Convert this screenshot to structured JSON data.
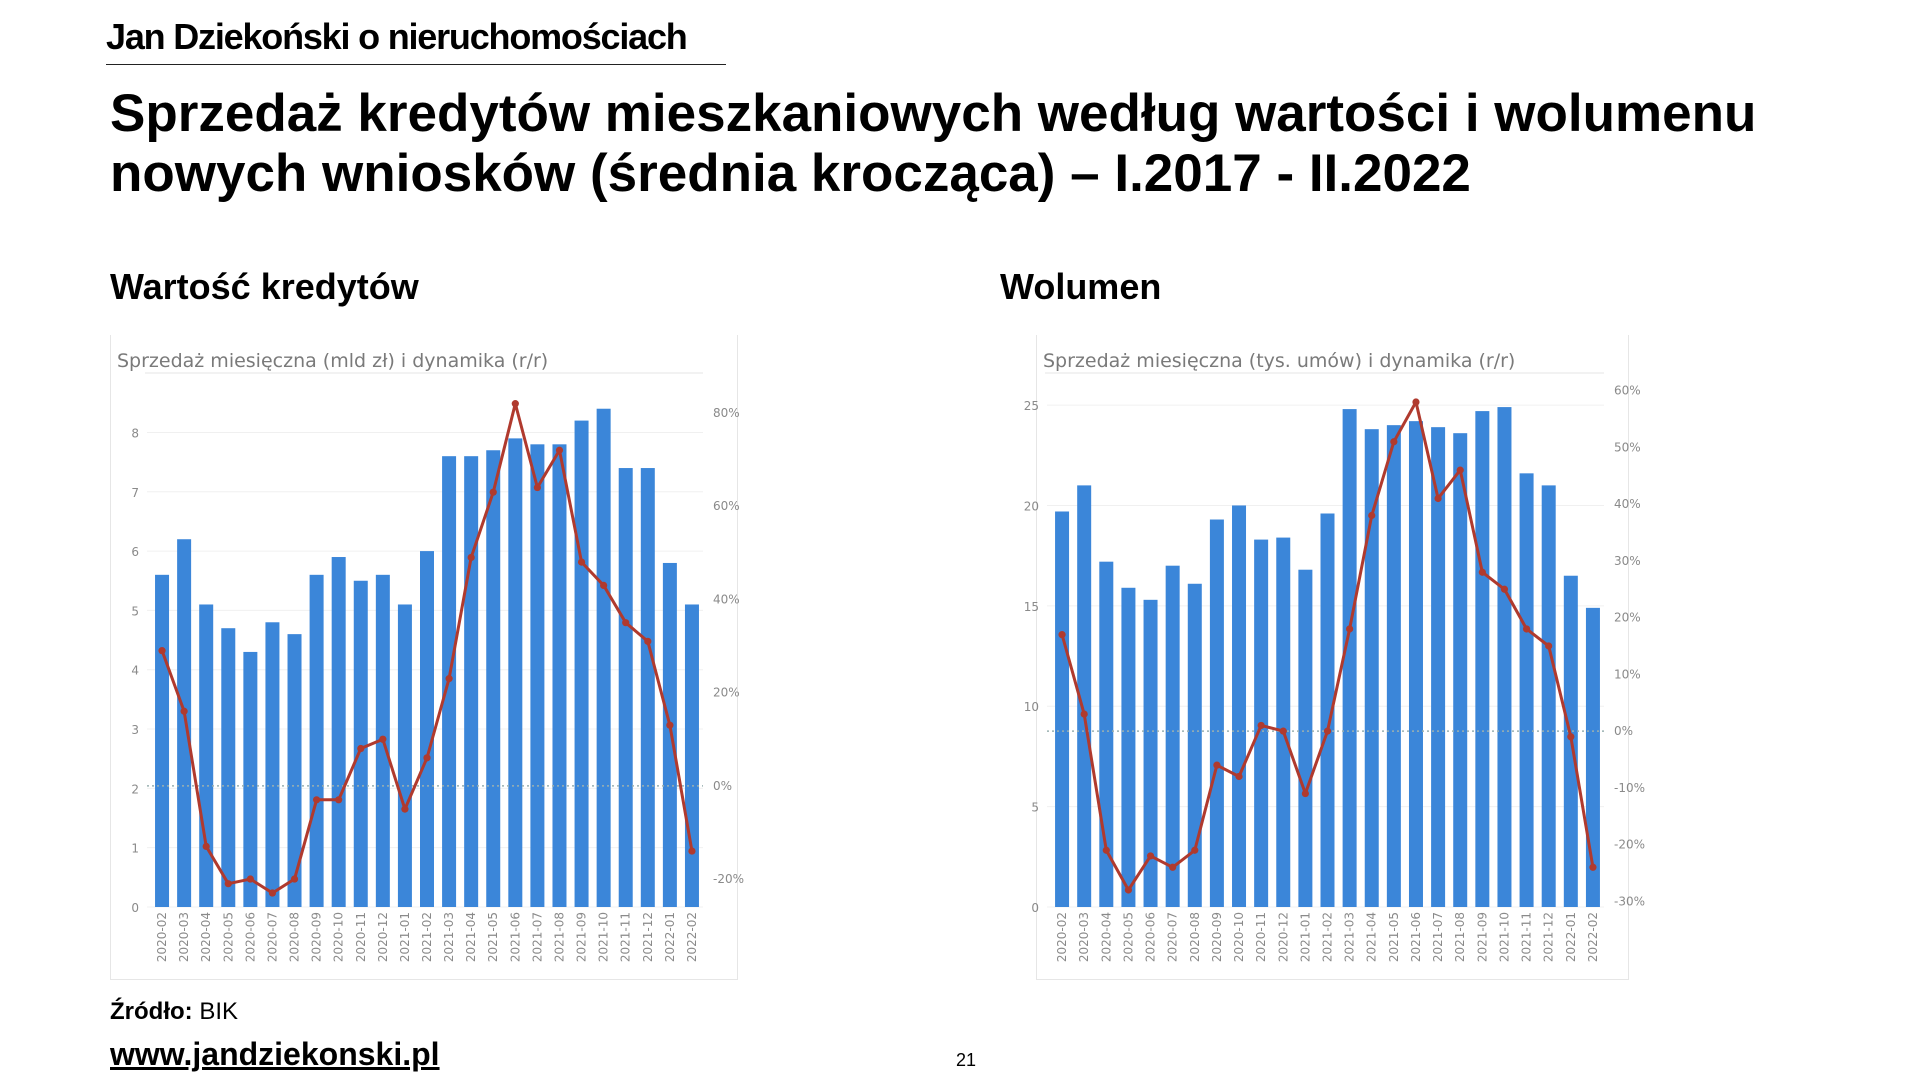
{
  "header": {
    "brand": "Jan Dziekoński o nieruchomościach",
    "title": "Sprzedaż kredytów mieszkaniowych według wartości i wolumenu nowych wniosków (średnia krocząca) – I.2017 - II.2022"
  },
  "sections": {
    "left_title": "Wartość kredytów",
    "right_title": "Wolumen"
  },
  "footer": {
    "source_label": "Źródło:",
    "source_value": "BIK",
    "website": "www.jandziekonski.pl",
    "page_number": "21"
  },
  "colors": {
    "bar": "#3b86d9",
    "line": "#b03a2e",
    "axis_text": "#8a8a8a",
    "grid": "#f0f0f0",
    "zero_line": "#9ab0b0"
  },
  "chart_data": [
    {
      "type": "bar",
      "title": "Sprzedaż miesięczna (mld zł) i dynamika (r/r)",
      "categories": [
        "2020-02",
        "2020-03",
        "2020-04",
        "2020-05",
        "2020-06",
        "2020-07",
        "2020-08",
        "2020-09",
        "2020-10",
        "2020-11",
        "2020-12",
        "2021-01",
        "2021-02",
        "2021-03",
        "2021-04",
        "2021-05",
        "2021-06",
        "2021-07",
        "2021-08",
        "2021-09",
        "2021-10",
        "2021-11",
        "2021-12",
        "2022-01",
        "2022-02"
      ],
      "series": [
        {
          "kind": "bar",
          "axis": "left",
          "values": [
            5.6,
            6.2,
            5.1,
            4.7,
            4.3,
            4.8,
            4.6,
            5.6,
            5.9,
            5.5,
            5.6,
            5.1,
            6.0,
            7.6,
            7.6,
            7.7,
            7.9,
            7.8,
            7.8,
            8.2,
            8.4,
            7.4,
            7.4,
            5.8,
            5.1
          ]
        },
        {
          "kind": "line",
          "axis": "right",
          "values": [
            29,
            16,
            -13,
            -21,
            -20,
            -23,
            -20,
            -3,
            -3,
            8,
            10,
            -5,
            6,
            23,
            49,
            63,
            82,
            64,
            72,
            48,
            43,
            35,
            31,
            13,
            -14
          ]
        }
      ],
      "y_left": {
        "ticks": [
          "0",
          "1",
          "2",
          "3",
          "4",
          "5",
          "6",
          "7",
          "8"
        ],
        "range": [
          0,
          8.8
        ]
      },
      "y_right": {
        "ticks": [
          "-20%",
          "0%",
          "20%",
          "40%",
          "60%",
          "80%"
        ],
        "range": [
          -26,
          86
        ]
      },
      "grid": true
    },
    {
      "type": "bar",
      "title": "Sprzedaż miesięczna (tys. umów) i dynamika (r/r)",
      "categories": [
        "2020-02",
        "2020-03",
        "2020-04",
        "2020-05",
        "2020-06",
        "2020-07",
        "2020-08",
        "2020-09",
        "2020-10",
        "2020-11",
        "2020-12",
        "2021-01",
        "2021-02",
        "2021-03",
        "2021-04",
        "2021-05",
        "2021-06",
        "2021-07",
        "2021-08",
        "2021-09",
        "2021-10",
        "2021-11",
        "2021-12",
        "2022-01",
        "2022-02"
      ],
      "series": [
        {
          "kind": "bar",
          "axis": "left",
          "values": [
            19.7,
            21.0,
            17.2,
            15.9,
            15.3,
            17.0,
            16.1,
            19.3,
            20.0,
            18.3,
            18.4,
            16.8,
            19.6,
            24.8,
            23.8,
            24.0,
            24.2,
            23.9,
            23.6,
            24.7,
            24.9,
            21.6,
            21.0,
            16.5,
            14.9
          ]
        },
        {
          "kind": "line",
          "axis": "right",
          "values": [
            17,
            3,
            -21,
            -28,
            -22,
            -24,
            -21,
            -6,
            -8,
            1,
            0,
            -11,
            0,
            18,
            38,
            51,
            58,
            41,
            46,
            28,
            25,
            18,
            15,
            -1,
            -24
          ]
        }
      ],
      "y_left": {
        "ticks": [
          "0",
          "5",
          "10",
          "15",
          "20",
          "25"
        ],
        "range": [
          0,
          26
        ]
      },
      "y_right": {
        "ticks": [
          "-30%",
          "-20%",
          "-10%",
          "0%",
          "10%",
          "20%",
          "30%",
          "40%",
          "50%",
          "60%"
        ],
        "range": [
          -31,
          61
        ]
      },
      "grid": true
    }
  ]
}
